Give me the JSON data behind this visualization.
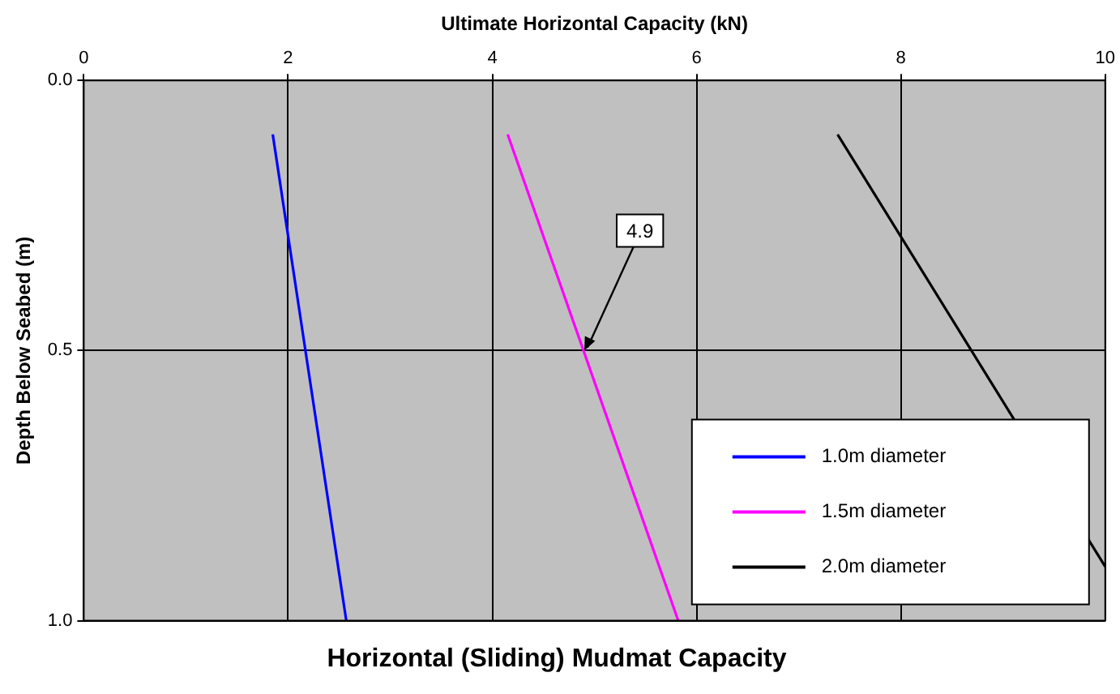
{
  "chart_data": {
    "type": "line",
    "title": "Horizontal (Sliding) Mudmat Capacity",
    "xlabel": "Ultimate Horizontal Capacity (kN)",
    "ylabel": "Depth Below Seabed (m)",
    "xlim": [
      0,
      10
    ],
    "xticks": [
      0,
      2,
      4,
      6,
      8,
      10
    ],
    "ylim": [
      1.0,
      0.0
    ],
    "yticks": [
      {
        "value": 0,
        "label": "0.0"
      },
      {
        "value": 0.5,
        "label": "0.5"
      },
      {
        "value": 1,
        "label": "1.0"
      }
    ],
    "grid": true,
    "legend": "bottom right",
    "marker": "none",
    "line_style": "solid",
    "series": [
      {
        "name": "1.0m diameter",
        "color": "#0000ff",
        "x": [
          1.85,
          2.57
        ],
        "values": [
          0.1,
          1.0
        ]
      },
      {
        "name": "1.5m diameter",
        "color": "#ff00ff",
        "x": [
          4.15,
          5.82
        ],
        "values": [
          0.1,
          1.0
        ]
      },
      {
        "name": "2.0m diameter",
        "color": "#000000",
        "x": [
          7.38,
          10
        ],
        "values": [
          0.1,
          0.9
        ]
      }
    ],
    "annotations": [
      {
        "text": "4.9",
        "x": 4.9,
        "y": 0.5
      }
    ]
  }
}
